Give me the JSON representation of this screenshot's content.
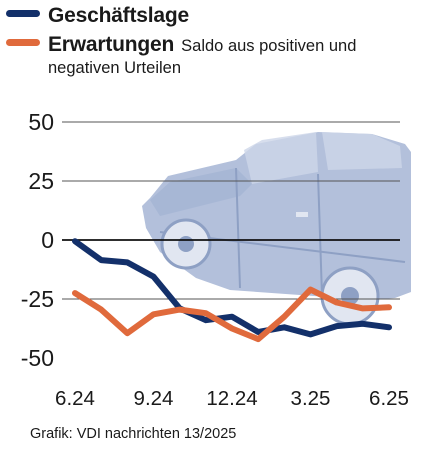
{
  "source": "Grafik: VDI nachrichten 13/2025",
  "colors": {
    "series_blue": "#13306a",
    "series_orange": "#e06a3c",
    "car": "#a9b7d3"
  },
  "chart_data": {
    "type": "line",
    "title": "",
    "xlabel": "",
    "ylabel": "",
    "ylim": [
      -50,
      50
    ],
    "yticks": [
      50,
      25,
      0,
      -25,
      -50
    ],
    "x_tick_labels": [
      "6.24",
      "9.24",
      "12.24",
      "3.25",
      "6.25"
    ],
    "x": [
      "6.24",
      "7.24",
      "8.24",
      "9.24",
      "10.24",
      "11.24",
      "12.24",
      "1.25",
      "2.25",
      "3.25",
      "4.25",
      "5.25",
      "6.25"
    ],
    "grid": "horizontal",
    "legend_position": "top-left",
    "series": [
      {
        "name": "Geschäftslage",
        "note": "",
        "color": "#13306a",
        "values": [
          -0.5,
          -8.5,
          -9.5,
          -15.5,
          -29,
          -34,
          -32.5,
          -39,
          -37,
          -40,
          -36.5,
          -35.5,
          -37
        ]
      },
      {
        "name": "Erwartungen",
        "note": "Saldo aus positiven und negativen Urteilen",
        "color": "#e06a3c",
        "values": [
          -22.5,
          -29.5,
          -39.5,
          -31.5,
          -29.5,
          -31,
          -37.5,
          -42,
          -32.5,
          -21,
          -26.5,
          -29,
          -28.5
        ]
      }
    ]
  }
}
